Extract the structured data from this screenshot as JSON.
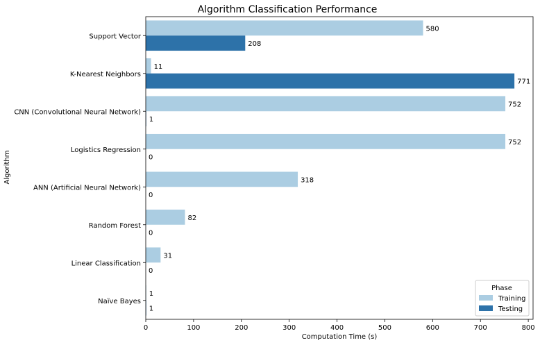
{
  "chart_data": {
    "type": "bar",
    "orientation": "horizontal",
    "title": "Algorithm Classification Performance",
    "xlabel": "Computation Time (s)",
    "ylabel": "Algorithm",
    "xlim": [
      0,
      810
    ],
    "xticks": [
      0,
      100,
      200,
      300,
      400,
      500,
      600,
      700,
      800
    ],
    "categories": [
      "Support Vector",
      "K-Nearest Neighbors",
      "CNN (Convolutional Neural Network)",
      "Logistics Regression",
      "ANN (Artificial Neural Network)",
      "Random Forest",
      "Linear Classification",
      "Naïve Bayes"
    ],
    "series": [
      {
        "name": "Training",
        "color": "#abcde2",
        "values": [
          580,
          11,
          752,
          752,
          318,
          82,
          31,
          1
        ]
      },
      {
        "name": "Testing",
        "color": "#2d72a9",
        "values": [
          208,
          771,
          1,
          0,
          0,
          0,
          0,
          1
        ]
      }
    ],
    "legend": {
      "title": "Phase",
      "position": "lower right"
    },
    "grid": false
  }
}
